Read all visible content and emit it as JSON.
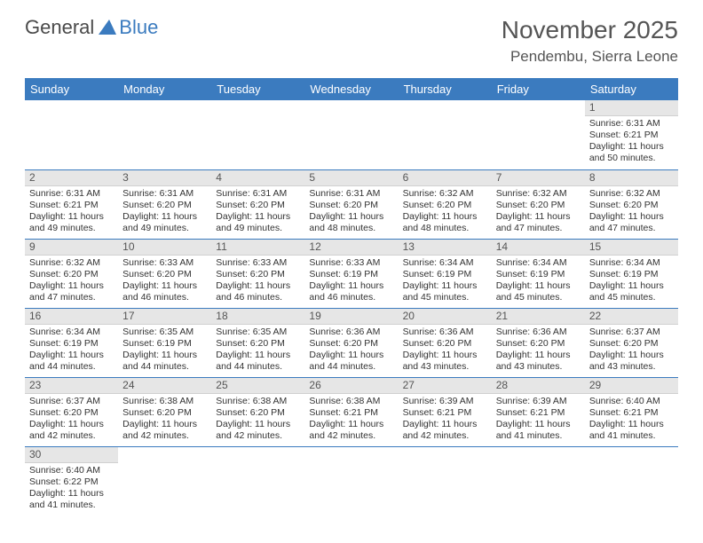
{
  "brand": {
    "name_part1": "General",
    "name_part2": "Blue"
  },
  "title": {
    "month": "November 2025",
    "location": "Pendembu, Sierra Leone"
  },
  "colors": {
    "header_bg": "#3b7bbf",
    "header_text": "#ffffff",
    "daynum_bg": "#e6e6e6",
    "daynum_text": "#555555",
    "body_text": "#333333",
    "row_divider": "#3b7bbf",
    "title_text": "#555555"
  },
  "day_headers": [
    "Sunday",
    "Monday",
    "Tuesday",
    "Wednesday",
    "Thursday",
    "Friday",
    "Saturday"
  ],
  "weeks": [
    [
      null,
      null,
      null,
      null,
      null,
      null,
      {
        "n": "1",
        "sunrise": "Sunrise: 6:31 AM",
        "sunset": "Sunset: 6:21 PM",
        "daylight": "Daylight: 11 hours and 50 minutes."
      }
    ],
    [
      {
        "n": "2",
        "sunrise": "Sunrise: 6:31 AM",
        "sunset": "Sunset: 6:21 PM",
        "daylight": "Daylight: 11 hours and 49 minutes."
      },
      {
        "n": "3",
        "sunrise": "Sunrise: 6:31 AM",
        "sunset": "Sunset: 6:20 PM",
        "daylight": "Daylight: 11 hours and 49 minutes."
      },
      {
        "n": "4",
        "sunrise": "Sunrise: 6:31 AM",
        "sunset": "Sunset: 6:20 PM",
        "daylight": "Daylight: 11 hours and 49 minutes."
      },
      {
        "n": "5",
        "sunrise": "Sunrise: 6:31 AM",
        "sunset": "Sunset: 6:20 PM",
        "daylight": "Daylight: 11 hours and 48 minutes."
      },
      {
        "n": "6",
        "sunrise": "Sunrise: 6:32 AM",
        "sunset": "Sunset: 6:20 PM",
        "daylight": "Daylight: 11 hours and 48 minutes."
      },
      {
        "n": "7",
        "sunrise": "Sunrise: 6:32 AM",
        "sunset": "Sunset: 6:20 PM",
        "daylight": "Daylight: 11 hours and 47 minutes."
      },
      {
        "n": "8",
        "sunrise": "Sunrise: 6:32 AM",
        "sunset": "Sunset: 6:20 PM",
        "daylight": "Daylight: 11 hours and 47 minutes."
      }
    ],
    [
      {
        "n": "9",
        "sunrise": "Sunrise: 6:32 AM",
        "sunset": "Sunset: 6:20 PM",
        "daylight": "Daylight: 11 hours and 47 minutes."
      },
      {
        "n": "10",
        "sunrise": "Sunrise: 6:33 AM",
        "sunset": "Sunset: 6:20 PM",
        "daylight": "Daylight: 11 hours and 46 minutes."
      },
      {
        "n": "11",
        "sunrise": "Sunrise: 6:33 AM",
        "sunset": "Sunset: 6:20 PM",
        "daylight": "Daylight: 11 hours and 46 minutes."
      },
      {
        "n": "12",
        "sunrise": "Sunrise: 6:33 AM",
        "sunset": "Sunset: 6:19 PM",
        "daylight": "Daylight: 11 hours and 46 minutes."
      },
      {
        "n": "13",
        "sunrise": "Sunrise: 6:34 AM",
        "sunset": "Sunset: 6:19 PM",
        "daylight": "Daylight: 11 hours and 45 minutes."
      },
      {
        "n": "14",
        "sunrise": "Sunrise: 6:34 AM",
        "sunset": "Sunset: 6:19 PM",
        "daylight": "Daylight: 11 hours and 45 minutes."
      },
      {
        "n": "15",
        "sunrise": "Sunrise: 6:34 AM",
        "sunset": "Sunset: 6:19 PM",
        "daylight": "Daylight: 11 hours and 45 minutes."
      }
    ],
    [
      {
        "n": "16",
        "sunrise": "Sunrise: 6:34 AM",
        "sunset": "Sunset: 6:19 PM",
        "daylight": "Daylight: 11 hours and 44 minutes."
      },
      {
        "n": "17",
        "sunrise": "Sunrise: 6:35 AM",
        "sunset": "Sunset: 6:19 PM",
        "daylight": "Daylight: 11 hours and 44 minutes."
      },
      {
        "n": "18",
        "sunrise": "Sunrise: 6:35 AM",
        "sunset": "Sunset: 6:20 PM",
        "daylight": "Daylight: 11 hours and 44 minutes."
      },
      {
        "n": "19",
        "sunrise": "Sunrise: 6:36 AM",
        "sunset": "Sunset: 6:20 PM",
        "daylight": "Daylight: 11 hours and 44 minutes."
      },
      {
        "n": "20",
        "sunrise": "Sunrise: 6:36 AM",
        "sunset": "Sunset: 6:20 PM",
        "daylight": "Daylight: 11 hours and 43 minutes."
      },
      {
        "n": "21",
        "sunrise": "Sunrise: 6:36 AM",
        "sunset": "Sunset: 6:20 PM",
        "daylight": "Daylight: 11 hours and 43 minutes."
      },
      {
        "n": "22",
        "sunrise": "Sunrise: 6:37 AM",
        "sunset": "Sunset: 6:20 PM",
        "daylight": "Daylight: 11 hours and 43 minutes."
      }
    ],
    [
      {
        "n": "23",
        "sunrise": "Sunrise: 6:37 AM",
        "sunset": "Sunset: 6:20 PM",
        "daylight": "Daylight: 11 hours and 42 minutes."
      },
      {
        "n": "24",
        "sunrise": "Sunrise: 6:38 AM",
        "sunset": "Sunset: 6:20 PM",
        "daylight": "Daylight: 11 hours and 42 minutes."
      },
      {
        "n": "25",
        "sunrise": "Sunrise: 6:38 AM",
        "sunset": "Sunset: 6:20 PM",
        "daylight": "Daylight: 11 hours and 42 minutes."
      },
      {
        "n": "26",
        "sunrise": "Sunrise: 6:38 AM",
        "sunset": "Sunset: 6:21 PM",
        "daylight": "Daylight: 11 hours and 42 minutes."
      },
      {
        "n": "27",
        "sunrise": "Sunrise: 6:39 AM",
        "sunset": "Sunset: 6:21 PM",
        "daylight": "Daylight: 11 hours and 42 minutes."
      },
      {
        "n": "28",
        "sunrise": "Sunrise: 6:39 AM",
        "sunset": "Sunset: 6:21 PM",
        "daylight": "Daylight: 11 hours and 41 minutes."
      },
      {
        "n": "29",
        "sunrise": "Sunrise: 6:40 AM",
        "sunset": "Sunset: 6:21 PM",
        "daylight": "Daylight: 11 hours and 41 minutes."
      }
    ],
    [
      {
        "n": "30",
        "sunrise": "Sunrise: 6:40 AM",
        "sunset": "Sunset: 6:22 PM",
        "daylight": "Daylight: 11 hours and 41 minutes."
      },
      null,
      null,
      null,
      null,
      null,
      null
    ]
  ]
}
